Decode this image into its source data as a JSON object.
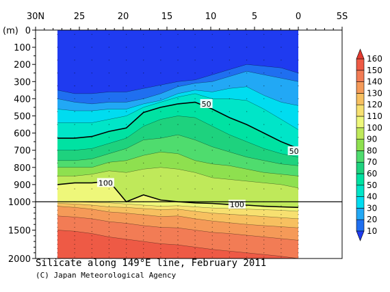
{
  "chart_data": {
    "type": "contour",
    "title": "Silicate along 149°E line, February 2011",
    "credit": "(C) Japan Meteorological Agency",
    "y_unit_label": "(m)",
    "x_axis": {
      "range": [
        30,
        -5
      ],
      "tick_values": [
        30,
        25,
        20,
        15,
        10,
        5,
        0,
        -5
      ],
      "tick_labels": [
        "30N",
        "25",
        "20",
        "15",
        "10",
        "5",
        "0",
        "5S"
      ]
    },
    "y_axis": {
      "upper_panel": {
        "range": [
          0,
          1000
        ],
        "tick_values": [
          0,
          100,
          200,
          300,
          400,
          500,
          600,
          700,
          800,
          900,
          1000
        ],
        "tick_labels": [
          "0",
          "100",
          "200",
          "300",
          "400",
          "500",
          "600",
          "700",
          "800",
          "900",
          "1000"
        ]
      },
      "lower_panel": {
        "range": [
          1000,
          2000
        ],
        "tick_values": [
          1500,
          2000
        ],
        "tick_labels": [
          "1500",
          "2000"
        ]
      }
    },
    "data_extent_lat": [
      27.5,
      0.0
    ],
    "colorbar": {
      "levels": [
        10,
        20,
        30,
        40,
        50,
        60,
        70,
        80,
        90,
        100,
        110,
        120,
        130,
        140,
        150,
        160
      ],
      "labels": [
        "10",
        "20",
        "30",
        "40",
        "50",
        "60",
        "70",
        "80",
        "90",
        "100",
        "110",
        "120",
        "130",
        "140",
        "150",
        "160"
      ],
      "colors": [
        "#1f3bf0",
        "#1f6ff0",
        "#22a8f5",
        "#00dcf0",
        "#00e5c8",
        "#00e2a2",
        "#1ed27e",
        "#4fdc6e",
        "#8ee04f",
        "#bfe95a",
        "#eef77a",
        "#f7e070",
        "#f7c060",
        "#f59a58",
        "#f27c55",
        "#ee5a45",
        "#e33a2f"
      ]
    },
    "contours": [
      {
        "value": 10,
        "depths": [
          350,
          370,
          370,
          360,
          360,
          340,
          320,
          300,
          290,
          260,
          230,
          200,
          210,
          220,
          250
        ]
      },
      {
        "value": 20,
        "depths": [
          400,
          420,
          430,
          420,
          420,
          400,
          370,
          330,
          310,
          300,
          270,
          240,
          260,
          280,
          300
        ]
      },
      {
        "value": 30,
        "depths": [
          460,
          470,
          470,
          460,
          460,
          430,
          410,
          370,
          350,
          360,
          340,
          330,
          380,
          420,
          440
        ]
      },
      {
        "value": 40,
        "depths": [
          540,
          540,
          540,
          520,
          500,
          450,
          420,
          390,
          370,
          400,
          400,
          410,
          460,
          520,
          580
        ]
      },
      {
        "value": 50,
        "depths": [
          630,
          630,
          620,
          590,
          570,
          480,
          450,
          430,
          420,
          460,
          510,
          550,
          600,
          650,
          690
        ]
      },
      {
        "value": 60,
        "depths": [
          700,
          700,
          690,
          660,
          630,
          560,
          520,
          500,
          510,
          560,
          610,
          650,
          690,
          720,
          740
        ]
      },
      {
        "value": 70,
        "depths": [
          760,
          760,
          750,
          720,
          690,
          640,
          630,
          610,
          640,
          680,
          710,
          740,
          760,
          780,
          790
        ]
      },
      {
        "value": 80,
        "depths": [
          800,
          800,
          800,
          770,
          760,
          730,
          710,
          720,
          760,
          780,
          790,
          810,
          830,
          840,
          850
        ]
      },
      {
        "value": 90,
        "depths": [
          850,
          850,
          840,
          820,
          830,
          810,
          800,
          810,
          830,
          860,
          870,
          880,
          890,
          900,
          920
        ]
      },
      {
        "value": 100,
        "depths": [
          900,
          890,
          890,
          880,
          1000,
          960,
          990,
          1000,
          1020,
          1030,
          1050,
          1060,
          1080,
          1090,
          1100
        ]
      },
      {
        "value": 110,
        "depths": [
          1000,
          1000,
          1010,
          1020,
          1040,
          1060,
          1080,
          1070,
          1090,
          1110,
          1120,
          1130,
          1140,
          1150,
          1170
        ]
      },
      {
        "value": 120,
        "depths": [
          1030,
          1040,
          1060,
          1090,
          1100,
          1120,
          1140,
          1130,
          1170,
          1200,
          1220,
          1240,
          1260,
          1280,
          1300
        ]
      },
      {
        "value": 130,
        "depths": [
          1080,
          1100,
          1130,
          1180,
          1200,
          1230,
          1260,
          1250,
          1300,
          1340,
          1370,
          1400,
          1420,
          1440,
          1460
        ]
      },
      {
        "value": 140,
        "depths": [
          1250,
          1270,
          1300,
          1350,
          1380,
          1420,
          1450,
          1460,
          1500,
          1540,
          1560,
          1590,
          1620,
          1650,
          1680
        ]
      },
      {
        "value": 150,
        "depths": [
          1500,
          1520,
          1560,
          1620,
          1660,
          1700,
          1740,
          1760,
          1800,
          1840,
          1870,
          1900,
          1930,
          1960,
          2000
        ]
      }
    ],
    "labels": [
      {
        "text": "50",
        "lat": 10.5,
        "depth": 430
      },
      {
        "text": "50",
        "lat": 0.5,
        "depth": 705
      },
      {
        "text": "100",
        "lat": 22.0,
        "depth": 890
      },
      {
        "text": "100",
        "lat": 7.0,
        "depth": 1050
      }
    ],
    "grid": false,
    "legend_position": "right (vertical colorbar)"
  }
}
